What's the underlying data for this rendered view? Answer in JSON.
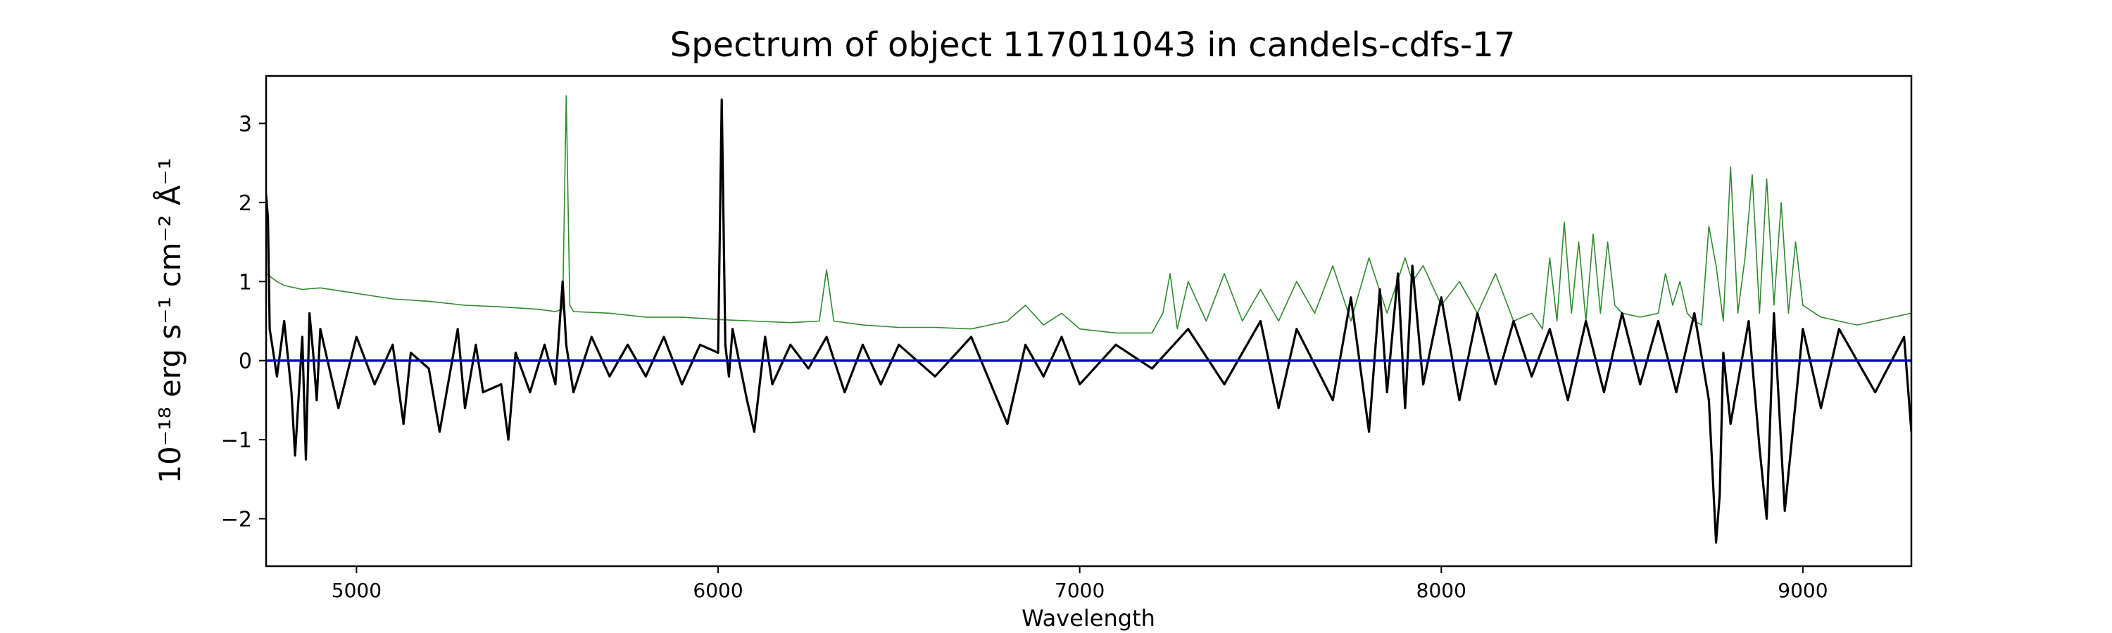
{
  "chart_data": {
    "type": "line",
    "title": "Spectrum of object 117011043 in candels-cdfs-17",
    "xlabel": "Wavelength",
    "ylabel": "10⁻¹⁸ erg s⁻¹ cm⁻² Å⁻¹",
    "xlim": [
      4750,
      9300
    ],
    "ylim": [
      -2.6,
      3.6
    ],
    "xticks": [
      5000,
      6000,
      7000,
      8000,
      9000
    ],
    "yticks": [
      -2,
      -1,
      0,
      1,
      2,
      3
    ],
    "grid": false,
    "zero_line": {
      "y": 0,
      "color": "#0000cc"
    },
    "colors": {
      "flux": "#000000",
      "error": "#2e8b2e",
      "zero": "#0000cc"
    },
    "series": [
      {
        "role": "flux",
        "x": [
          4750,
          4755,
          4760,
          4780,
          4800,
          4820,
          4830,
          4850,
          4860,
          4870,
          4880,
          4890,
          4900,
          4950,
          5000,
          5050,
          5100,
          5130,
          5150,
          5200,
          5230,
          5280,
          5300,
          5330,
          5350,
          5400,
          5420,
          5440,
          5480,
          5520,
          5550,
          5570,
          5580,
          5600,
          5650,
          5700,
          5750,
          5800,
          5850,
          5900,
          5950,
          6000,
          6010,
          6020,
          6030,
          6040,
          6080,
          6100,
          6130,
          6150,
          6200,
          6250,
          6300,
          6350,
          6400,
          6450,
          6500,
          6600,
          6700,
          6800,
          6850,
          6900,
          6950,
          7000,
          7100,
          7200,
          7300,
          7400,
          7500,
          7550,
          7600,
          7700,
          7750,
          7800,
          7830,
          7850,
          7880,
          7900,
          7920,
          7950,
          8000,
          8050,
          8100,
          8150,
          8200,
          8250,
          8300,
          8350,
          8400,
          8450,
          8500,
          8550,
          8600,
          8650,
          8700,
          8740,
          8750,
          8760,
          8770,
          8780,
          8800,
          8850,
          8880,
          8900,
          8920,
          8950,
          9000,
          9050,
          9100,
          9200,
          9280,
          9300
        ],
        "y": [
          2.1,
          1.8,
          0.4,
          -0.2,
          0.5,
          -0.4,
          -1.2,
          0.3,
          -1.25,
          0.6,
          0.1,
          -0.5,
          0.4,
          -0.6,
          0.3,
          -0.3,
          0.2,
          -0.8,
          0.1,
          -0.1,
          -0.9,
          0.4,
          -0.6,
          0.2,
          -0.4,
          -0.3,
          -1.0,
          0.1,
          -0.4,
          0.2,
          -0.3,
          1.0,
          0.2,
          -0.4,
          0.3,
          -0.2,
          0.2,
          -0.2,
          0.3,
          -0.3,
          0.2,
          0.1,
          3.3,
          0.2,
          -0.2,
          0.4,
          -0.5,
          -0.9,
          0.3,
          -0.3,
          0.2,
          -0.1,
          0.3,
          -0.4,
          0.2,
          -0.3,
          0.2,
          -0.2,
          0.3,
          -0.8,
          0.2,
          -0.2,
          0.3,
          -0.3,
          0.2,
          -0.1,
          0.4,
          -0.3,
          0.5,
          -0.6,
          0.4,
          -0.5,
          0.8,
          -0.9,
          0.9,
          -0.4,
          1.1,
          -0.6,
          1.2,
          -0.3,
          0.8,
          -0.5,
          0.6,
          -0.3,
          0.5,
          -0.2,
          0.4,
          -0.5,
          0.5,
          -0.4,
          0.6,
          -0.3,
          0.5,
          -0.4,
          0.6,
          -0.5,
          -1.4,
          -2.3,
          -1.7,
          0.1,
          -0.8,
          0.5,
          -1.1,
          -2.0,
          0.6,
          -1.9,
          0.4,
          -0.6,
          0.4,
          -0.4,
          0.3,
          -0.9
        ]
      },
      {
        "role": "error",
        "x": [
          4750,
          4780,
          4800,
          4850,
          4900,
          5000,
          5100,
          5200,
          5300,
          5400,
          5500,
          5550,
          5570,
          5580,
          5590,
          5600,
          5700,
          5800,
          5900,
          6000,
          6100,
          6200,
          6280,
          6300,
          6320,
          6400,
          6500,
          6600,
          6700,
          6800,
          6850,
          6900,
          6950,
          7000,
          7100,
          7200,
          7230,
          7250,
          7270,
          7300,
          7350,
          7400,
          7450,
          7500,
          7550,
          7600,
          7650,
          7700,
          7750,
          7800,
          7850,
          7900,
          7920,
          7950,
          8000,
          8050,
          8100,
          8150,
          8200,
          8250,
          8280,
          8300,
          8320,
          8340,
          8360,
          8380,
          8400,
          8420,
          8440,
          8460,
          8480,
          8500,
          8550,
          8600,
          8620,
          8640,
          8660,
          8680,
          8700,
          8720,
          8740,
          8760,
          8780,
          8800,
          8820,
          8840,
          8860,
          8880,
          8900,
          8920,
          8940,
          8960,
          8980,
          9000,
          9050,
          9100,
          9150,
          9200,
          9250,
          9300
        ],
        "y": [
          1.1,
          1.0,
          0.95,
          0.9,
          0.92,
          0.85,
          0.78,
          0.75,
          0.7,
          0.68,
          0.65,
          0.62,
          0.65,
          3.35,
          0.7,
          0.62,
          0.6,
          0.55,
          0.55,
          0.52,
          0.5,
          0.48,
          0.5,
          1.15,
          0.5,
          0.45,
          0.42,
          0.42,
          0.4,
          0.5,
          0.7,
          0.45,
          0.6,
          0.4,
          0.35,
          0.35,
          0.6,
          1.1,
          0.4,
          1.0,
          0.5,
          1.1,
          0.5,
          0.9,
          0.5,
          1.0,
          0.6,
          1.2,
          0.5,
          1.3,
          0.6,
          1.3,
          1.0,
          1.2,
          0.7,
          1.0,
          0.6,
          1.1,
          0.5,
          0.6,
          0.4,
          1.3,
          0.5,
          1.75,
          0.6,
          1.5,
          0.5,
          1.6,
          0.6,
          1.5,
          0.7,
          0.6,
          0.55,
          0.6,
          1.1,
          0.7,
          1.0,
          0.6,
          0.5,
          0.45,
          1.7,
          1.2,
          0.5,
          2.45,
          0.6,
          1.3,
          2.35,
          0.6,
          2.3,
          0.7,
          2.0,
          0.6,
          1.5,
          0.7,
          0.55,
          0.5,
          0.45,
          0.5,
          0.55,
          0.6
        ]
      }
    ]
  }
}
